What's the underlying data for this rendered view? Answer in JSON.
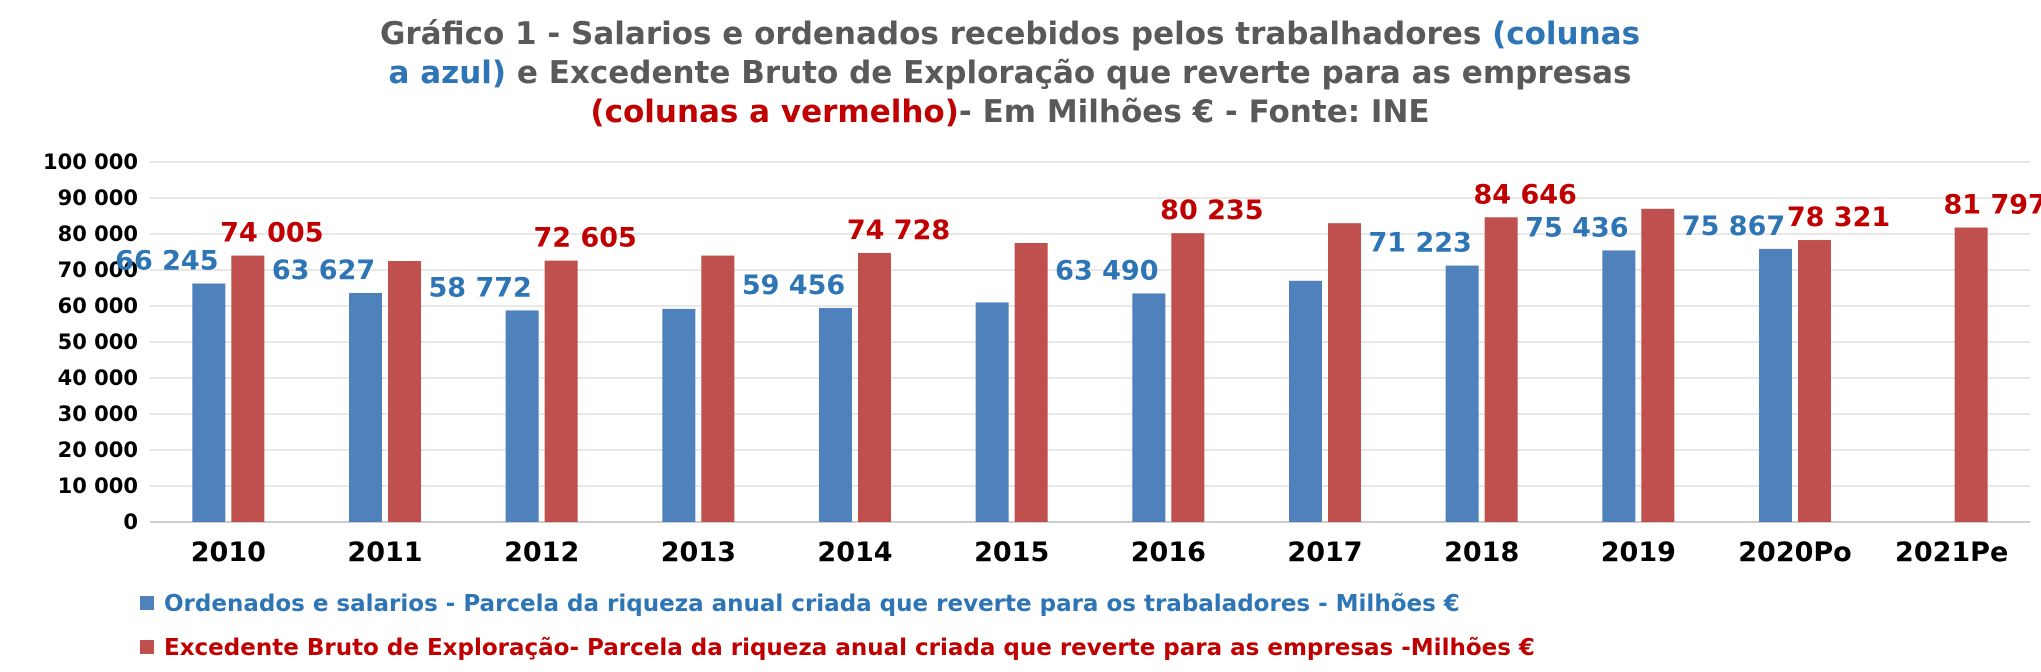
{
  "title": {
    "line1_a": "Gráfico 1 - Salarios e ordenados recebidos pelos trabalhadores ",
    "line1_b": "(colunas",
    "line2_a": "a azul)",
    "line2_b": "  e Excedente Bruto de Exploração  que reverte para as empresas",
    "line3_a": "(colunas a vermelho)",
    "line3_b": "- Em Milhões € - Fonte: INE"
  },
  "legend": [
    {
      "label": "Ordenados e salarios - Parcela da riqueza anual criada que reverte para os trabaladores - Milhões €",
      "color": "#4f81bd",
      "text_color": "#2e75b6"
    },
    {
      "label": "Excedente Bruto de Exploração- Parcela da riqueza anual criada que reverte para as empresas -Milhões €",
      "color": "#c0504d",
      "text_color": "#c00000"
    }
  ],
  "chart_data": {
    "type": "bar",
    "categories": [
      "2010",
      "2011",
      "2012",
      "2013",
      "2014",
      "2015",
      "2016",
      "2017",
      "2018",
      "2019",
      "2020Po",
      "2021Pe"
    ],
    "series": [
      {
        "values": [
          66245,
          63627,
          58772,
          59200,
          59456,
          61000,
          63490,
          67000,
          71223,
          75436,
          75867,
          null
        ],
        "labels": [
          "66 245",
          "63 627",
          "58 772",
          "",
          "59 456",
          "",
          "63 490",
          "",
          "71 223",
          "75 436",
          "75 867",
          ""
        ],
        "color": "#4f81bd",
        "label_color": "#2e75b6"
      },
      {
        "values": [
          74005,
          72500,
          72605,
          74000,
          74728,
          77500,
          80235,
          83000,
          84646,
          87000,
          78321,
          81797
        ],
        "labels": [
          "74 005",
          "",
          "72 605",
          "",
          "74 728",
          "",
          "80 235",
          "",
          "84 646",
          "",
          "78 321",
          "81 797"
        ],
        "color": "#c0504d",
        "label_color": "#c00000"
      }
    ],
    "ylim": [
      0,
      100000
    ],
    "yticks": [
      0,
      10000,
      20000,
      30000,
      40000,
      50000,
      60000,
      70000,
      80000,
      90000,
      100000
    ],
    "ytick_labels": [
      "0",
      "10 000",
      "20 000",
      "30 000",
      "40 000",
      "50 000",
      "60 000",
      "70 000",
      "80 000",
      "90 000",
      "100 000"
    ],
    "grid": true,
    "legend_position": "bottom"
  }
}
